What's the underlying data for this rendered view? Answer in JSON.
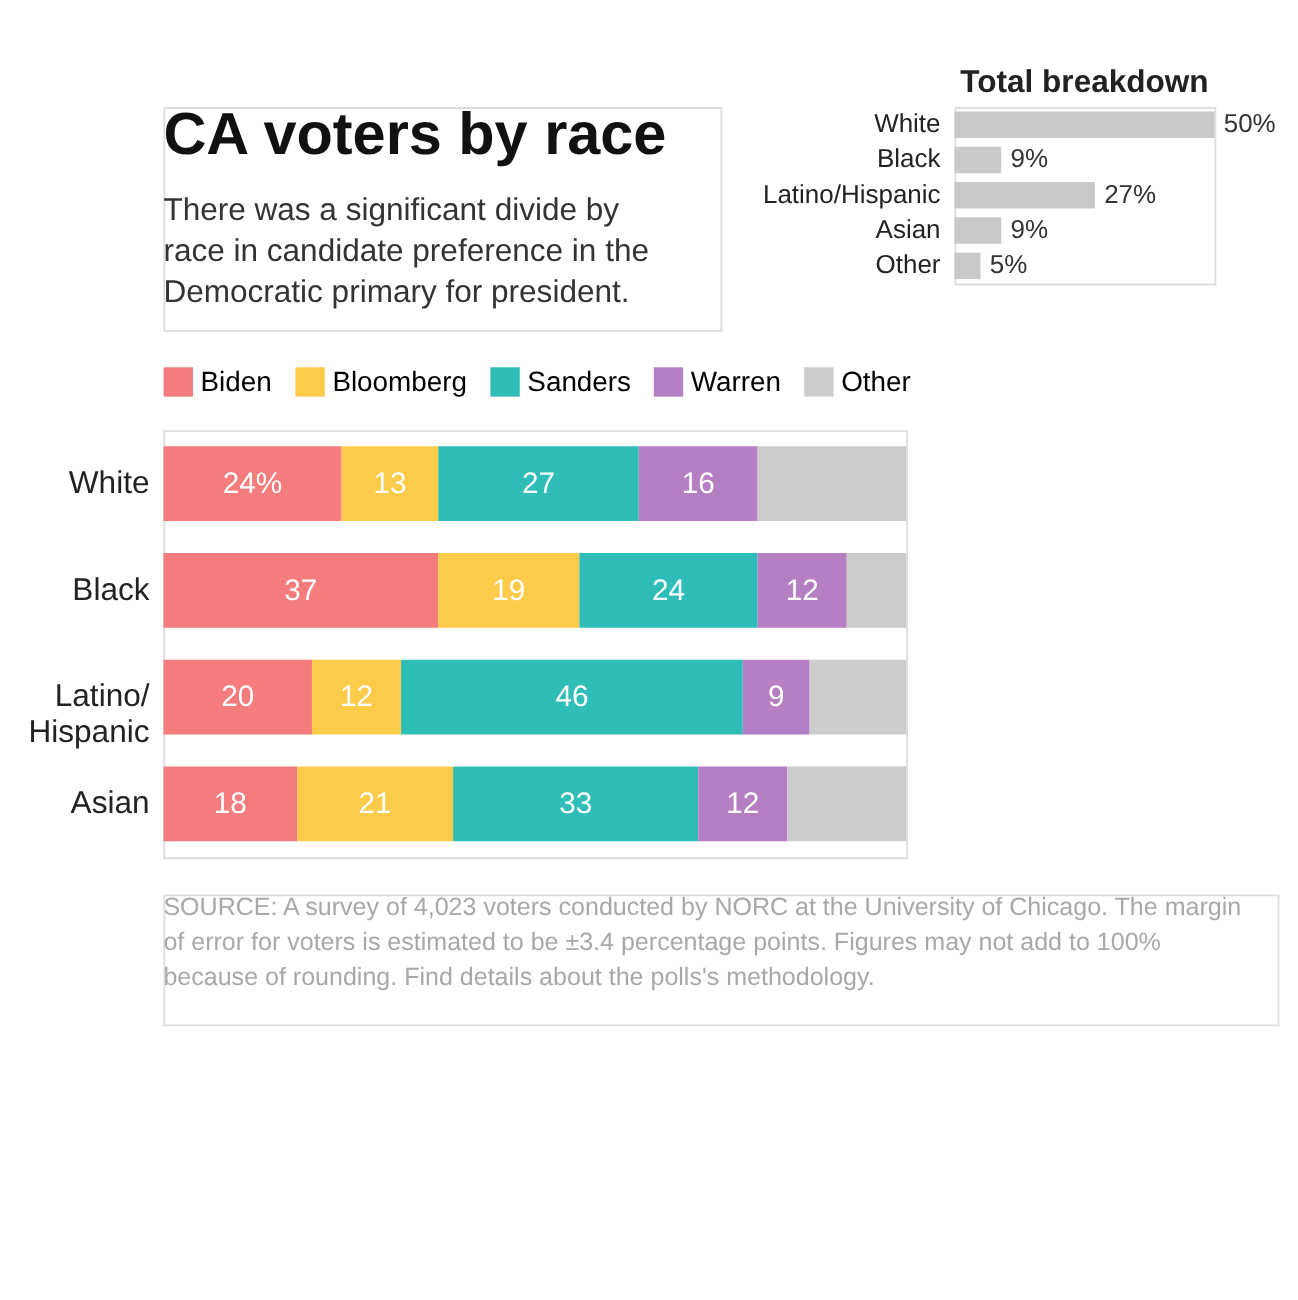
{
  "chart_data": [
    {
      "type": "bar",
      "title": "CA voters by race",
      "subtitle": "There was a significant divide by race in candidate preference in the Democratic primary for president.",
      "orientation": "horizontal",
      "stacked": true,
      "legend": "top",
      "categories": [
        "White",
        "Black",
        "Latino/Hispanic",
        "Asian"
      ],
      "series": [
        {
          "name": "Biden",
          "color": "#f47c7c",
          "values": [
            24,
            37,
            20,
            18
          ],
          "value_labels": [
            "24%",
            "37",
            "20",
            "18"
          ]
        },
        {
          "name": "Bloomberg",
          "color": "#fccb4a",
          "values": [
            13,
            19,
            12,
            21
          ],
          "value_labels": [
            "13",
            "19",
            "12",
            "21"
          ]
        },
        {
          "name": "Sanders",
          "color": "#2fbdb8",
          "values": [
            27,
            24,
            46,
            33
          ],
          "value_labels": [
            "27",
            "24",
            "46",
            "33"
          ]
        },
        {
          "name": "Warren",
          "color": "#b67fc4",
          "values": [
            16,
            12,
            9,
            12
          ],
          "value_labels": [
            "16",
            "12",
            "9",
            "12"
          ]
        },
        {
          "name": "Other",
          "color": "#cccccc",
          "values": [
            20,
            8,
            13,
            16
          ],
          "value_labels": [
            null,
            null,
            null,
            null
          ]
        }
      ],
      "annotations": [
        "SOURCE: A survey of 4,023 voters conducted by NORC at the University of Chicago. The margin of error for voters is estimated to be ±3.4 percentage points. Figures may not add to 100% because of rounding. Find details about the polls's methodology."
      ]
    },
    {
      "type": "bar",
      "title": "Total breakdown",
      "orientation": "horizontal",
      "categories": [
        "White",
        "Black",
        "Latino/Hispanic",
        "Asian",
        "Other"
      ],
      "values": [
        50,
        9,
        27,
        9,
        5
      ],
      "color": "#c9c9c9",
      "value_labels": [
        "50%",
        "9%",
        "27%",
        "9%",
        "5%"
      ]
    }
  ]
}
